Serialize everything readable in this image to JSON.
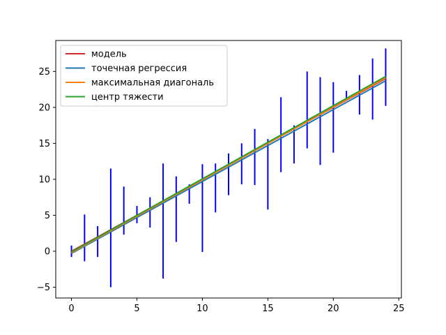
{
  "chart_data": {
    "type": "line",
    "title": "",
    "xlabel": "",
    "ylabel": "",
    "xlim": [
      -1.2,
      25.2
    ],
    "ylim": [
      -6.5,
      29.3
    ],
    "xticks": [
      0,
      5,
      10,
      15,
      20,
      25
    ],
    "yticks": [
      -5,
      0,
      5,
      10,
      15,
      20,
      25
    ],
    "grid": false,
    "legend_position": "top-left",
    "series": [
      {
        "name": "модель",
        "color": "#d62728",
        "x": [
          0,
          24
        ],
        "y": [
          0,
          24
        ]
      },
      {
        "name": "точечная регрессия",
        "color": "#1f77b4",
        "x": [
          0,
          24
        ],
        "y": [
          -0.3,
          23.7
        ]
      },
      {
        "name": "максимальная диагональ",
        "color": "#ff7f0e",
        "x": [
          0,
          24
        ],
        "y": [
          -0.2,
          24.1
        ]
      },
      {
        "name": "центр тяжести",
        "color": "#2ca02c",
        "x": [
          0,
          24
        ],
        "y": [
          -0.1,
          24.3
        ]
      }
    ],
    "intervals": {
      "color": "#0000ff",
      "x": [
        0,
        1,
        2,
        3,
        4,
        5,
        6,
        7,
        8,
        9,
        10,
        11,
        12,
        13,
        14,
        15,
        16,
        17,
        18,
        19,
        20,
        21,
        22,
        23,
        24
      ],
      "low": [
        -0.8,
        -1.4,
        -0.8,
        -5.0,
        2.3,
        3.9,
        3.3,
        -3.8,
        1.3,
        6.6,
        -0.1,
        5.4,
        7.8,
        9.3,
        9.2,
        5.8,
        11.0,
        12.2,
        14.3,
        12.0,
        13.7,
        21.3,
        19.0,
        18.3,
        20.2
      ],
      "high": [
        0.8,
        5.1,
        3.5,
        11.5,
        9.0,
        6.3,
        7.5,
        12.2,
        10.4,
        9.3,
        12.1,
        12.2,
        13.6,
        15.0,
        17.0,
        15.6,
        21.4,
        17.5,
        25.0,
        24.2,
        23.5,
        22.3,
        24.5,
        26.8,
        28.2
      ]
    }
  }
}
